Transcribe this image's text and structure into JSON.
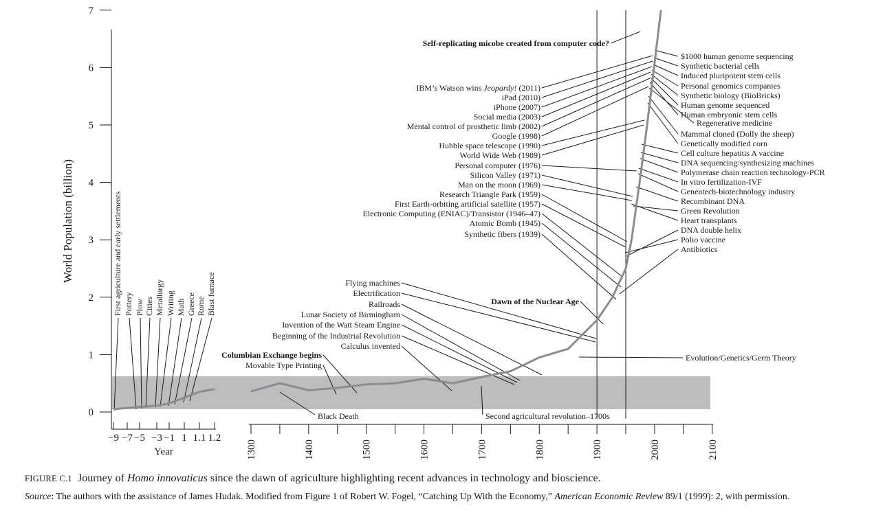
{
  "chart_data": {
    "type": "line",
    "ylabel": "World Population (billion)",
    "xlabel": "Year",
    "ylim": [
      0,
      7
    ],
    "y_ticks": [
      "0",
      "1",
      "2",
      "3",
      "4",
      "5",
      "6",
      "7"
    ],
    "left_panel": {
      "x_ticks": [
        "−9",
        "−7",
        "−5",
        "−3",
        "−1",
        "1",
        "1.1",
        "1.2"
      ],
      "series": [
        {
          "x": "−9",
          "y": 0.05
        },
        {
          "x": "−7",
          "y": 0.07
        },
        {
          "x": "−5",
          "y": 0.09
        },
        {
          "x": "−3",
          "y": 0.11
        },
        {
          "x": "−1",
          "y": 0.15
        },
        {
          "x": "1",
          "y": 0.25
        },
        {
          "x": "1.1",
          "y": 0.35
        },
        {
          "x": "1.2",
          "y": 0.4
        }
      ]
    },
    "right_panel": {
      "x_ticks": [
        "1300",
        "1400",
        "1500",
        "1600",
        "1700",
        "1800",
        "1900",
        "2000",
        "2100"
      ],
      "series": [
        {
          "x": 1300,
          "y": 0.36
        },
        {
          "x": 1350,
          "y": 0.5
        },
        {
          "x": 1400,
          "y": 0.38
        },
        {
          "x": 1450,
          "y": 0.42
        },
        {
          "x": 1500,
          "y": 0.48
        },
        {
          "x": 1550,
          "y": 0.5
        },
        {
          "x": 1600,
          "y": 0.58
        },
        {
          "x": 1650,
          "y": 0.5
        },
        {
          "x": 1700,
          "y": 0.61
        },
        {
          "x": 1750,
          "y": 0.71
        },
        {
          "x": 1800,
          "y": 0.95
        },
        {
          "x": 1850,
          "y": 1.1
        },
        {
          "x": 1900,
          "y": 1.6
        },
        {
          "x": 1927,
          "y": 2.0
        },
        {
          "x": 1950,
          "y": 2.5
        },
        {
          "x": 1960,
          "y": 3.0
        },
        {
          "x": 1974,
          "y": 4.0
        },
        {
          "x": 1987,
          "y": 5.0
        },
        {
          "x": 1999,
          "y": 6.0
        },
        {
          "x": 2011,
          "y": 7.0
        }
      ],
      "vertical_lines": [
        1900,
        1950
      ]
    },
    "left_events": [
      {
        "label": "First agriculture and early settlements",
        "x": "−9"
      },
      {
        "label": "Pottery",
        "x": "−7"
      },
      {
        "label": "Plow",
        "x": "−6"
      },
      {
        "label": "Cities",
        "x": "−5"
      },
      {
        "label": "Metallurgy",
        "x": "−3"
      },
      {
        "label": "Writing",
        "x": "−2"
      },
      {
        "label": "Math",
        "x": "−1"
      },
      {
        "label": "Greece",
        "x": "0"
      },
      {
        "label": "Rome",
        "x": "1"
      },
      {
        "label": "Blast furnace",
        "x": "1.1"
      }
    ],
    "annotations_left": [
      {
        "label": "Self-replicating micobe created from computer code?",
        "bold": true
      },
      {
        "label": "IBM’s Watson wins Jeopardy! (2011)"
      },
      {
        "label": "iPad (2010)"
      },
      {
        "label": "iPhone (2007)"
      },
      {
        "label": "Social media (2003)"
      },
      {
        "label": "Mental control of prosthetic limb (2002)"
      },
      {
        "label": "Google (1998)"
      },
      {
        "label": "Hubble space telescope (1990)"
      },
      {
        "label": "World Wide Web (1989)"
      },
      {
        "label": "Personal computer (1976)"
      },
      {
        "label": "Silicon Valley (1971)"
      },
      {
        "label": "Man on the moon (1969)"
      },
      {
        "label": "Research Triangle Park (1959)"
      },
      {
        "label": "First Earth-orbiting artificial satellite (1957)"
      },
      {
        "label": "Electronic Computing (ENIAC)/Transistor (1946–47)"
      },
      {
        "label": "Atomic Bomb (1945)"
      },
      {
        "label": "Synthetic fibers (1939)"
      },
      {
        "label": "Flying machines"
      },
      {
        "label": "Electrification"
      },
      {
        "label": "Railroads"
      },
      {
        "label": "Lunar Society of Birmingham"
      },
      {
        "label": "Invention of the Watt Steam Engine"
      },
      {
        "label": "Beginning of the Industrial Revolution"
      },
      {
        "label": "Calculus invented"
      },
      {
        "label": "Dawn of the Nuclear Age",
        "bold": true
      },
      {
        "label": "Columbian Exchange begins",
        "bold": true
      },
      {
        "label": "Movable Type Printing"
      },
      {
        "label": "Black Death"
      },
      {
        "label": "Second agricultural revolution–1700s"
      }
    ],
    "annotations_right": [
      {
        "label": "$1000 human genome sequencing"
      },
      {
        "label": "Synthetic bacterial cells"
      },
      {
        "label": "Induced pluripotent stem cells"
      },
      {
        "label": "Personal genomics companies"
      },
      {
        "label": "Synthetic biology (BioBricks)"
      },
      {
        "label": "Human genome sequenced"
      },
      {
        "label": "Human embryonic stem cells"
      },
      {
        "label": "Regenerative medicine"
      },
      {
        "label": "Mammal cloned (Dolly the sheep)"
      },
      {
        "label": "Genetically modified corn"
      },
      {
        "label": "Cell culture hepatitis A vaccine"
      },
      {
        "label": "DNA sequencing/synthesizing machines"
      },
      {
        "label": "Polymerase chain reaction technology-PCR"
      },
      {
        "label": "In vitro fertilization-IVF"
      },
      {
        "label": "Genentech-biotechnology industry"
      },
      {
        "label": "Recombinant DNA"
      },
      {
        "label": "Green Revolution"
      },
      {
        "label": "Heart transplants"
      },
      {
        "label": "DNA double helix"
      },
      {
        "label": "Polio vaccine"
      },
      {
        "label": "Antibiotics"
      },
      {
        "label": "Evolution/Genetics/Germ Theory"
      }
    ],
    "colors": {
      "series": "#8c8c8f",
      "band": "#bdbdc0",
      "axis": "#1a1a1a"
    }
  },
  "caption": {
    "label": "FIGURE C.1",
    "text_before": "Journey of ",
    "text_italic": "Homo innovaticus",
    "text_after": " since the dawn of agriculture highlighting recent advances in technology and bioscience."
  },
  "source": {
    "label": "Source",
    "text_before": ": The authors with the assistance of James Hudak. Modified from Figure 1 of Robert W. Fogel, “Catching Up With the Economy,” ",
    "text_italic": "American Economic Review",
    "text_after": " 89/1 (1999): 2, with permission."
  }
}
